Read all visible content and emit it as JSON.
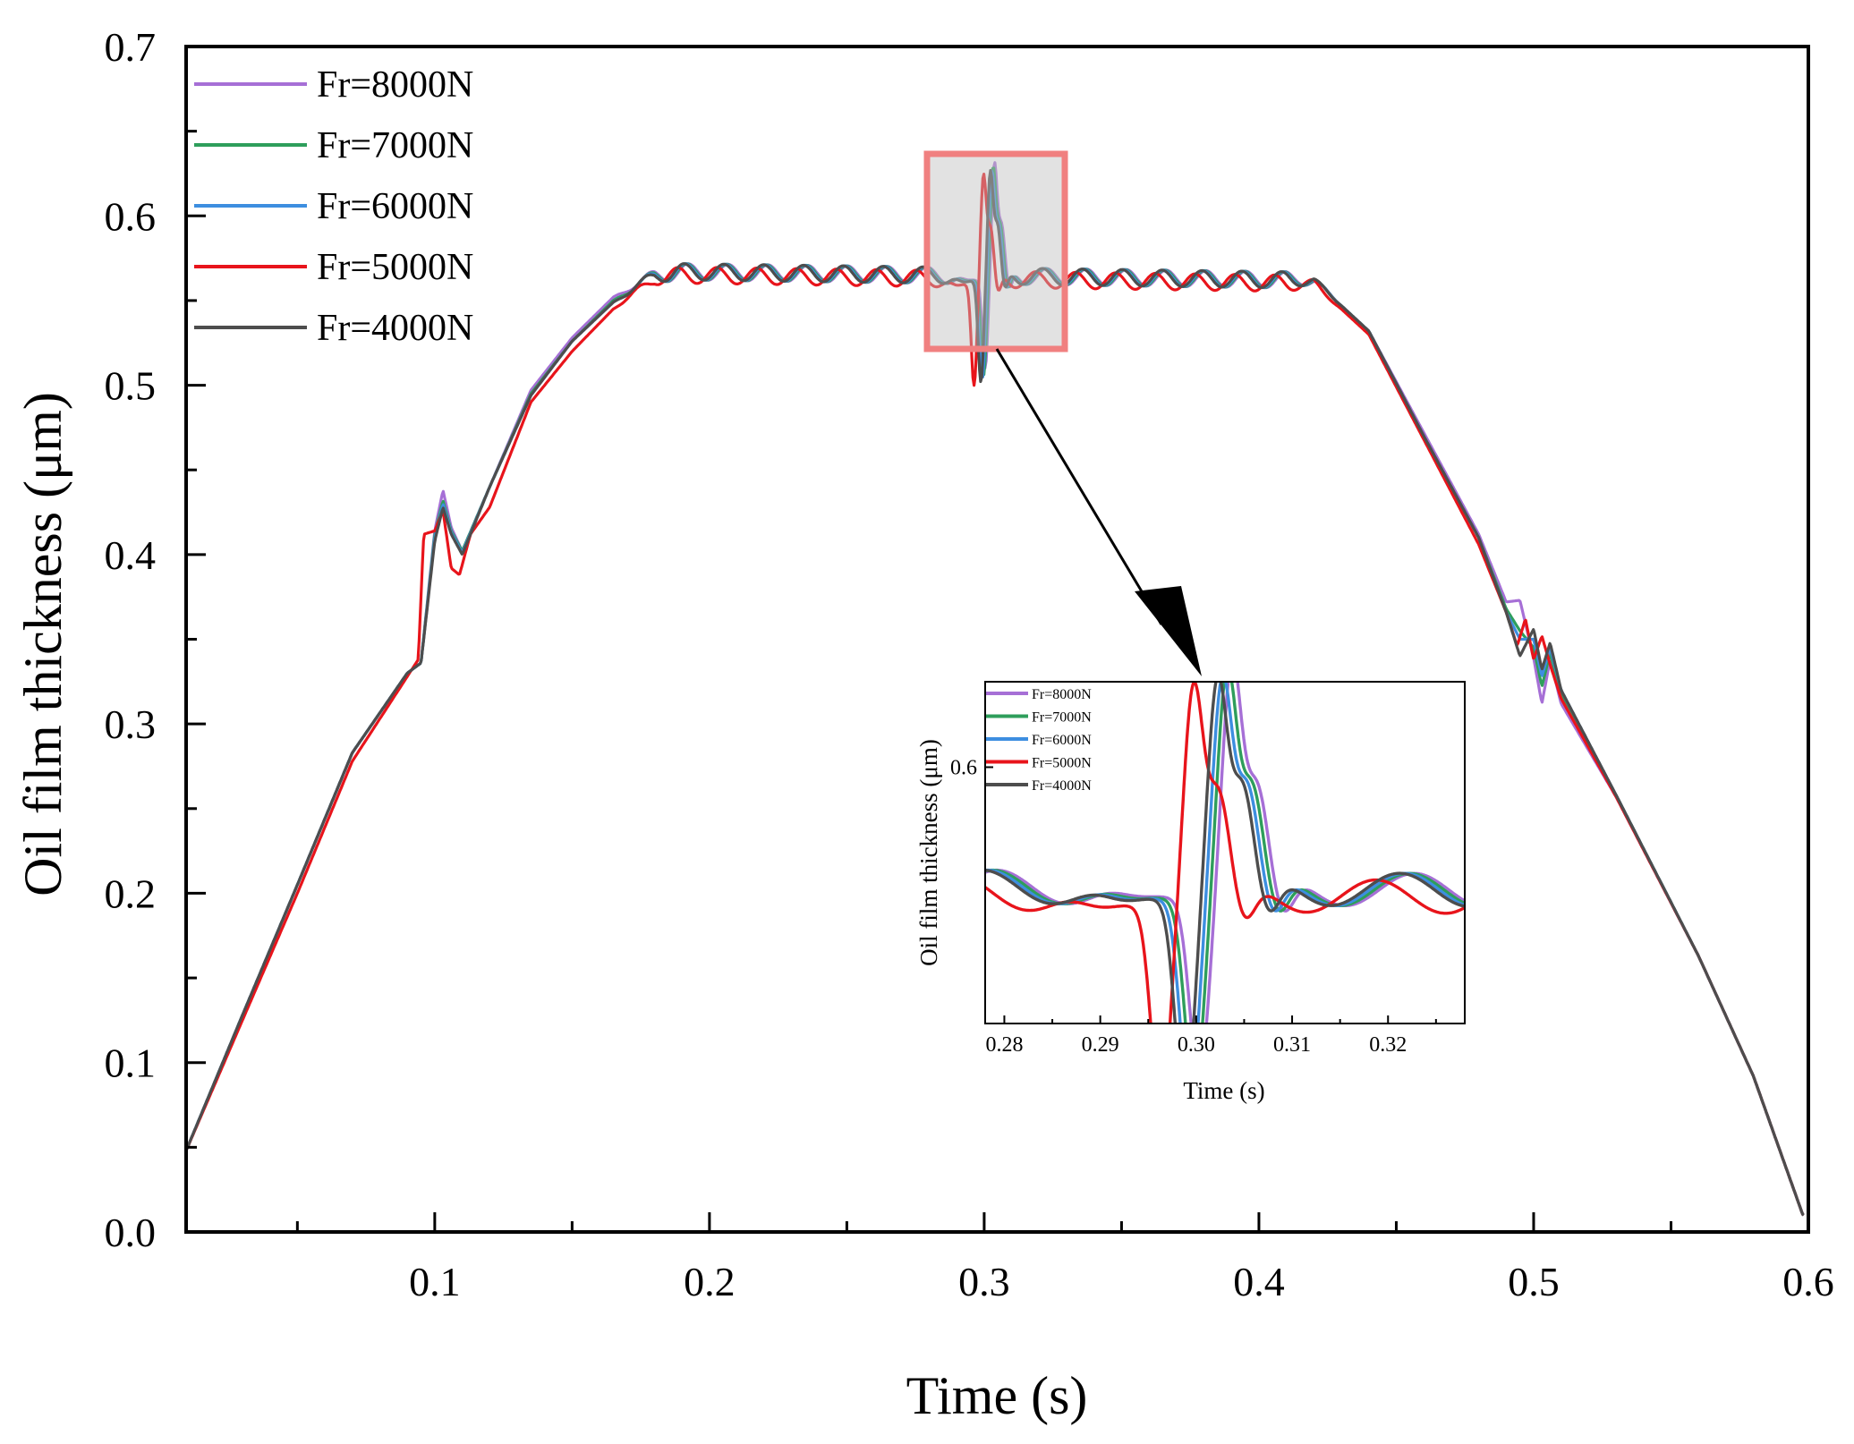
{
  "chart_data": [
    {
      "id": "main",
      "type": "line",
      "title": "",
      "xlabel": "Time (s)",
      "ylabel": "Oil film thickness (μm)",
      "xlim": [
        0.0095,
        0.6
      ],
      "ylim": [
        0.0,
        0.7
      ],
      "xticks": [
        0.1,
        0.2,
        0.3,
        0.4,
        0.5,
        0.6
      ],
      "xtick_labels": [
        "0.1",
        "0.2",
        "0.3",
        "0.4",
        "0.5",
        "0.6"
      ],
      "yticks": [
        0.0,
        0.1,
        0.2,
        0.3,
        0.4,
        0.5,
        0.6,
        0.7
      ],
      "ytick_labels": [
        "0.0",
        "0.1",
        "0.2",
        "0.3",
        "0.4",
        "0.5",
        "0.6",
        "0.7"
      ],
      "legend_position": "top-left",
      "grid": false,
      "series": [
        {
          "name": "Fr=8000N",
          "color": "#a66fd6",
          "shift": 0.0015,
          "amp": 1.08,
          "dip_scale": 0.86,
          "x": [
            0.0095,
            0.03,
            0.05,
            0.07,
            0.09,
            0.095,
            0.1,
            0.103,
            0.106,
            0.11,
            0.12,
            0.135,
            0.15,
            0.165,
            0.18,
            0.19,
            0.42,
            0.44,
            0.46,
            0.48,
            0.49,
            0.495,
            0.5,
            0.503,
            0.506,
            0.51,
            0.53,
            0.56,
            0.58,
            0.598
          ],
          "y": [
            0.048,
            0.128,
            0.205,
            0.283,
            0.33,
            0.336,
            0.414,
            0.438,
            0.416,
            0.402,
            0.44,
            0.497,
            0.528,
            0.552,
            0.565,
            0.567,
            0.562,
            0.532,
            0.472,
            0.412,
            0.372,
            0.373,
            0.339,
            0.312,
            0.338,
            0.312,
            0.257,
            0.163,
            0.092,
            0.01
          ]
        },
        {
          "name": "Fr=7000N",
          "color": "#2e9e5b",
          "shift": 0.001,
          "amp": 1.04,
          "dip_scale": 0.93,
          "x": [
            0.0095,
            0.03,
            0.05,
            0.07,
            0.09,
            0.095,
            0.1,
            0.103,
            0.106,
            0.11,
            0.12,
            0.135,
            0.15,
            0.165,
            0.18,
            0.19,
            0.42,
            0.44,
            0.46,
            0.48,
            0.49,
            0.495,
            0.5,
            0.503,
            0.506,
            0.51,
            0.53,
            0.56,
            0.58,
            0.598
          ],
          "y": [
            0.048,
            0.128,
            0.205,
            0.283,
            0.33,
            0.336,
            0.412,
            0.432,
            0.414,
            0.402,
            0.44,
            0.495,
            0.526,
            0.55,
            0.565,
            0.567,
            0.562,
            0.532,
            0.47,
            0.41,
            0.368,
            0.355,
            0.345,
            0.322,
            0.342,
            0.318,
            0.258,
            0.163,
            0.092,
            0.01
          ]
        },
        {
          "name": "Fr=6000N",
          "color": "#3d8ee0",
          "shift": 0.0005,
          "amp": 1.0,
          "dip_scale": 0.97,
          "x": [
            0.0095,
            0.03,
            0.05,
            0.07,
            0.09,
            0.095,
            0.1,
            0.103,
            0.106,
            0.11,
            0.12,
            0.135,
            0.15,
            0.165,
            0.18,
            0.19,
            0.42,
            0.44,
            0.46,
            0.48,
            0.49,
            0.495,
            0.5,
            0.503,
            0.506,
            0.51,
            0.53,
            0.56,
            0.58,
            0.598
          ],
          "y": [
            0.048,
            0.128,
            0.205,
            0.283,
            0.33,
            0.336,
            0.41,
            0.43,
            0.413,
            0.401,
            0.44,
            0.494,
            0.526,
            0.549,
            0.565,
            0.567,
            0.562,
            0.532,
            0.47,
            0.41,
            0.366,
            0.35,
            0.35,
            0.328,
            0.345,
            0.32,
            0.258,
            0.163,
            0.092,
            0.01
          ]
        },
        {
          "name": "Fr=5000N",
          "color": "#e8141b",
          "shift": -0.0025,
          "amp": 1.0,
          "dip_scale": 1.0,
          "x": [
            0.0095,
            0.03,
            0.05,
            0.07,
            0.09,
            0.094,
            0.096,
            0.1,
            0.103,
            0.106,
            0.109,
            0.113,
            0.12,
            0.135,
            0.15,
            0.165,
            0.18,
            0.19,
            0.42,
            0.44,
            0.46,
            0.48,
            0.49,
            0.494,
            0.497,
            0.5,
            0.503,
            0.506,
            0.51,
            0.53,
            0.56,
            0.58,
            0.598
          ],
          "y": [
            0.048,
            0.125,
            0.2,
            0.278,
            0.328,
            0.338,
            0.412,
            0.414,
            0.426,
            0.392,
            0.388,
            0.412,
            0.428,
            0.49,
            0.52,
            0.545,
            0.563,
            0.565,
            0.56,
            0.53,
            0.468,
            0.406,
            0.366,
            0.346,
            0.362,
            0.338,
            0.352,
            0.335,
            0.315,
            0.257,
            0.163,
            0.092,
            0.01
          ]
        },
        {
          "name": "Fr=4000N",
          "color": "#4d4d4d",
          "shift": 0.0,
          "amp": 1.0,
          "dip_scale": 1.0,
          "x": [
            0.0095,
            0.03,
            0.05,
            0.07,
            0.09,
            0.095,
            0.1,
            0.103,
            0.106,
            0.11,
            0.12,
            0.135,
            0.15,
            0.165,
            0.18,
            0.19,
            0.42,
            0.44,
            0.46,
            0.48,
            0.49,
            0.495,
            0.5,
            0.503,
            0.506,
            0.51,
            0.53,
            0.56,
            0.58,
            0.598
          ],
          "y": [
            0.048,
            0.128,
            0.205,
            0.283,
            0.33,
            0.336,
            0.408,
            0.428,
            0.412,
            0.4,
            0.44,
            0.494,
            0.526,
            0.549,
            0.565,
            0.567,
            0.562,
            0.532,
            0.47,
            0.41,
            0.366,
            0.34,
            0.356,
            0.332,
            0.348,
            0.32,
            0.258,
            0.163,
            0.092,
            0.01
          ]
        }
      ],
      "zoom_region": {
        "x": [
          0.28,
          0.33
        ],
        "y": [
          0.52,
          0.635
        ]
      }
    },
    {
      "id": "inset",
      "type": "line",
      "title": "",
      "xlabel": "Time (s)",
      "ylabel": "Oil film thickness (μm)",
      "xlim": [
        0.278,
        0.328
      ],
      "ylim": [
        0.525,
        0.625
      ],
      "xticks": [
        0.28,
        0.29,
        0.3,
        0.31,
        0.32
      ],
      "xtick_labels": [
        "0.28",
        "0.29",
        "0.30",
        "0.31",
        "0.32"
      ],
      "yticks": [
        0.6
      ],
      "ytick_labels": [
        "0.6"
      ],
      "legend_position": "top-left",
      "grid": false,
      "series": [
        {
          "name": "Fr=8000N",
          "color": "#a66fd6",
          "shift": 0.0015,
          "amp": 1.08,
          "dip_scale": 0.86
        },
        {
          "name": "Fr=7000N",
          "color": "#2e9e5b",
          "shift": 0.001,
          "amp": 1.04,
          "dip_scale": 0.93
        },
        {
          "name": "Fr=6000N",
          "color": "#3d8ee0",
          "shift": 0.0005,
          "amp": 1.0,
          "dip_scale": 0.97
        },
        {
          "name": "Fr=5000N",
          "color": "#e8141b",
          "shift": -0.0025,
          "amp": 1.0,
          "dip_scale": 1.0
        },
        {
          "name": "Fr=4000N",
          "color": "#4d4d4d",
          "shift": 0.0,
          "amp": 1.0,
          "dip_scale": 1.0
        }
      ]
    }
  ]
}
